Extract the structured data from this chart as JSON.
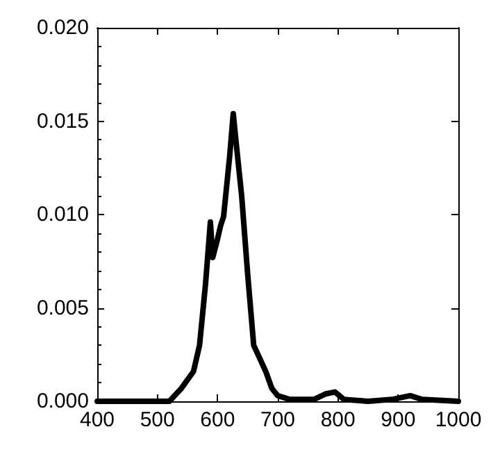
{
  "chart_data": {
    "type": "line",
    "color": "#000000",
    "marker": "none",
    "grid": false,
    "x": [
      400,
      520,
      540,
      560,
      570,
      580,
      588,
      592,
      600,
      605,
      610,
      615,
      620,
      626,
      630,
      640,
      650,
      660,
      670,
      680,
      690,
      700,
      720,
      750,
      760,
      780,
      795,
      810,
      850,
      890,
      920,
      940,
      1000
    ],
    "values": [
      0,
      0,
      0.0007,
      0.0016,
      0.003,
      0.0063,
      0.0096,
      0.0077,
      0.0087,
      0.0094,
      0.0099,
      0.0115,
      0.0131,
      0.0154,
      0.0141,
      0.011,
      0.0068,
      0.003,
      0.0023,
      0.0016,
      0.0007,
      0.0003,
      0.0001,
      0.0001,
      0.0001,
      0.0004,
      0.0005,
      0.0001,
      0,
      0.0001,
      0.0003,
      0.0001,
      0
    ],
    "xlim": [
      400,
      1000
    ],
    "xticks": [
      400,
      500,
      600,
      700,
      800,
      900,
      1000
    ],
    "ylim": [
      0,
      0.02
    ],
    "yticks": [
      {
        "value": 0,
        "label": "0.000"
      },
      {
        "value": 0.005,
        "label": "0.005"
      },
      {
        "value": 0.01,
        "label": "0.010"
      },
      {
        "value": 0.015,
        "label": "0.015"
      },
      {
        "value": 0.02,
        "label": "0.020"
      }
    ]
  }
}
